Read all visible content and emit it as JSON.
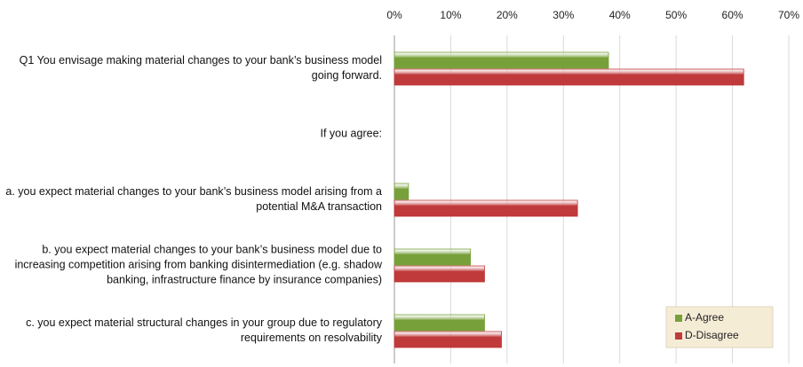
{
  "chart_data": {
    "type": "bar",
    "orientation": "horizontal",
    "categories": [
      "Q1 You envisage making material changes to your bank’s business model going forward.",
      "If you agree:",
      "a. you expect material changes to your bank’s business model arising from a potential M&A transaction",
      "b. you expect material changes to your bank’s business model due to increasing competition arising from banking disintermediation (e.g. shadow banking, infrastructure finance by insurance companies)",
      "c. you expect material structural changes in your group due to regulatory requirements on resolvability"
    ],
    "series": [
      {
        "name": "A-Agree",
        "color": "#77a03a",
        "values": [
          38,
          null,
          2.5,
          13.5,
          16
        ]
      },
      {
        "name": "D-Disagree",
        "color": "#c0393b",
        "values": [
          62,
          null,
          32.5,
          16,
          19
        ]
      }
    ],
    "xlim": [
      0,
      70
    ],
    "xticks": [
      {
        "value": 0,
        "label": "0%"
      },
      {
        "value": 10,
        "label": "10%"
      },
      {
        "value": 20,
        "label": "20%"
      },
      {
        "value": 30,
        "label": "30%"
      },
      {
        "value": 40,
        "label": "40%"
      },
      {
        "value": 50,
        "label": "50%"
      },
      {
        "value": 60,
        "label": "60%"
      },
      {
        "value": 70,
        "label": "70%"
      }
    ],
    "grid": true,
    "legend": "lower right"
  }
}
